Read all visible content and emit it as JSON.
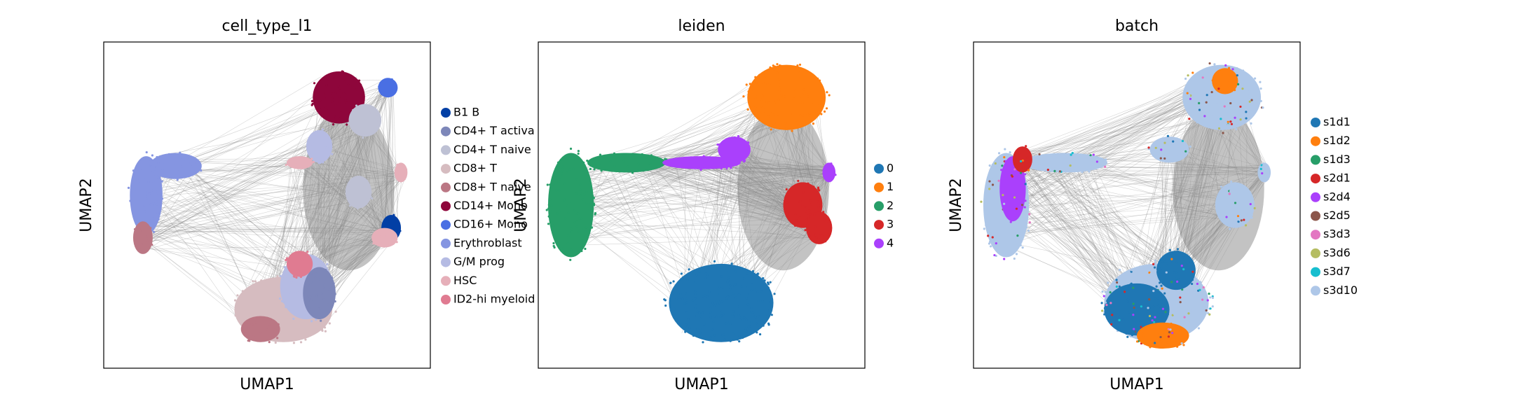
{
  "chart_data": [
    {
      "type": "scatter",
      "title": "cell_type_l1",
      "x_label": "UMAP1",
      "y_label": "UMAP2",
      "series": [
        {
          "name": "B1 B",
          "color": "#023fa5"
        },
        {
          "name": "CD4+ T activa",
          "color": "#7d87b9"
        },
        {
          "name": "CD4+ T naive",
          "color": "#bec1d4"
        },
        {
          "name": "CD8+ T",
          "color": "#d6bcc0"
        },
        {
          "name": "CD8+ T naive",
          "color": "#bb7784"
        },
        {
          "name": "CD14+ Mono",
          "color": "#8e063b"
        },
        {
          "name": "CD16+ Mono",
          "color": "#4a6fe3"
        },
        {
          "name": "Erythroblast",
          "color": "#8595e1"
        },
        {
          "name": "G/M prog",
          "color": "#b5bbe3"
        },
        {
          "name": "HSC",
          "color": "#e6afb9"
        },
        {
          "name": "ID2-hi myeloid",
          "color": "#e07b91"
        }
      ]
    },
    {
      "type": "scatter",
      "title": "leiden",
      "x_label": "UMAP1",
      "y_label": "UMAP2",
      "series": [
        {
          "name": "0",
          "color": "#1f77b4"
        },
        {
          "name": "1",
          "color": "#ff7f0e"
        },
        {
          "name": "2",
          "color": "#279e68"
        },
        {
          "name": "3",
          "color": "#d62728"
        },
        {
          "name": "4",
          "color": "#aa40fc"
        }
      ]
    },
    {
      "type": "scatter",
      "title": "batch",
      "x_label": "UMAP1",
      "y_label": "UMAP2",
      "series": [
        {
          "name": "s1d1",
          "color": "#1f77b4"
        },
        {
          "name": "s1d2",
          "color": "#ff7f0e"
        },
        {
          "name": "s1d3",
          "color": "#279e68"
        },
        {
          "name": "s2d1",
          "color": "#d62728"
        },
        {
          "name": "s2d4",
          "color": "#aa40fc"
        },
        {
          "name": "s2d5",
          "color": "#8c564b"
        },
        {
          "name": "s3d3",
          "color": "#e377c2"
        },
        {
          "name": "s3d6",
          "color": "#b5bd61"
        },
        {
          "name": "s3d7",
          "color": "#17becf"
        },
        {
          "name": "s3d10",
          "color": "#aec7e8"
        }
      ]
    }
  ]
}
